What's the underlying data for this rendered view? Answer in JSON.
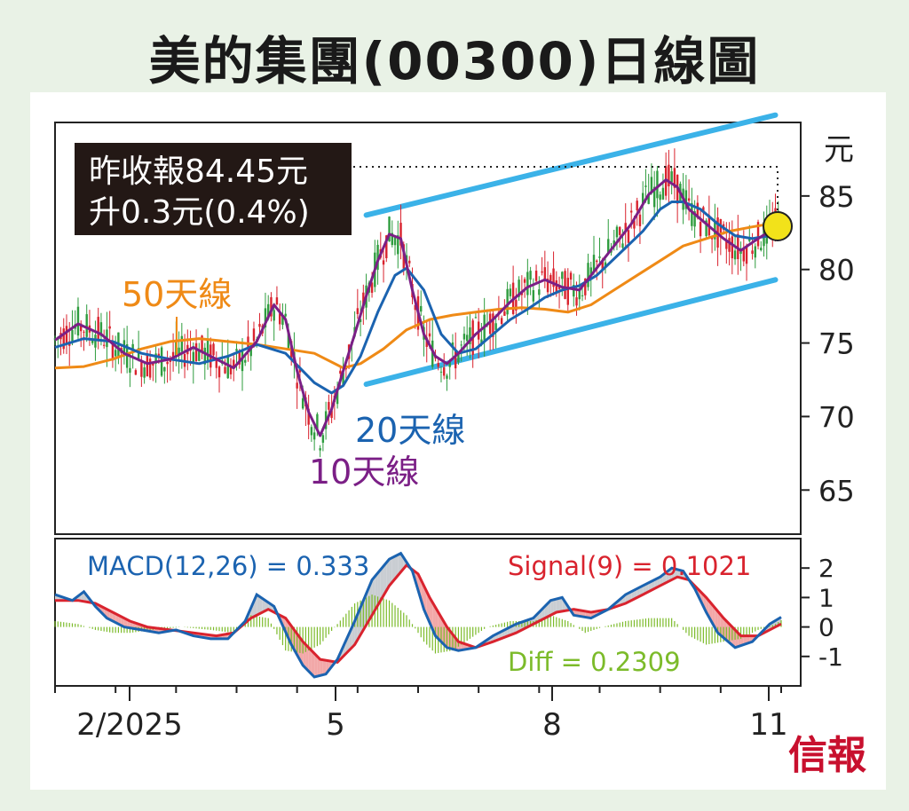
{
  "title": "美的集團(00300)日線圖",
  "info_box": {
    "line1": "昨收報84.45元",
    "line2": "升0.3元(0.4%)"
  },
  "brand": "信報",
  "colors": {
    "bar_up": "#2e9c3e",
    "bar_down": "#d9232e",
    "ma10": "#7b1f86",
    "ma20": "#1b63b0",
    "ma50": "#ef8a16",
    "channel": "#3bb2e8",
    "macd": "#1b63b0",
    "signal": "#d9232e",
    "diff": "#7cbb2a",
    "highlight": "#f2e21a",
    "brand": "#c8102e"
  },
  "chart_data": [
    {
      "type": "candlestick",
      "name": "price",
      "y_unit": "元",
      "ylim": [
        62,
        90
      ],
      "y_ticks": [
        65,
        70,
        75,
        80,
        85
      ],
      "x_tick_labels": [
        "2/2025",
        "5",
        "8",
        "11"
      ],
      "last_close": 84.45,
      "change": 0.3,
      "change_pct": 0.4,
      "lines": [
        {
          "name": "10天線",
          "color_key": "ma10",
          "points": [
            [
              0,
              75.2
            ],
            [
              8,
              76.3
            ],
            [
              16,
              75.6
            ],
            [
              24,
              74.3
            ],
            [
              32,
              73.6
            ],
            [
              40,
              73.9
            ],
            [
              48,
              74.7
            ],
            [
              56,
              73.9
            ],
            [
              62,
              73.3
            ],
            [
              70,
              75.1
            ],
            [
              76,
              77.6
            ],
            [
              80,
              76.6
            ],
            [
              84,
              73.1
            ],
            [
              88,
              70.3
            ],
            [
              92,
              68.7
            ],
            [
              96,
              70.5
            ],
            [
              100,
              73.1
            ],
            [
              104,
              75.6
            ],
            [
              108,
              78.2
            ],
            [
              112,
              80.6
            ],
            [
              116,
              82.4
            ],
            [
              120,
              82.1
            ],
            [
              124,
              78.6
            ],
            [
              128,
              75.6
            ],
            [
              132,
              74.1
            ],
            [
              136,
              73.6
            ],
            [
              140,
              74.3
            ],
            [
              146,
              75.6
            ],
            [
              152,
              76.6
            ],
            [
              158,
              77.8
            ],
            [
              164,
              78.8
            ],
            [
              170,
              79.3
            ],
            [
              176,
              78.8
            ],
            [
              182,
              78.6
            ],
            [
              188,
              80.1
            ],
            [
              194,
              81.6
            ],
            [
              200,
              83.1
            ],
            [
              206,
              85.1
            ],
            [
              212,
              86.1
            ],
            [
              216,
              85.6
            ],
            [
              220,
              84.1
            ],
            [
              226,
              83.1
            ],
            [
              232,
              82.1
            ],
            [
              238,
              81.3
            ],
            [
              244,
              82.1
            ],
            [
              248,
              82.6
            ],
            [
              252,
              83.6
            ]
          ]
        },
        {
          "name": "20天線",
          "color_key": "ma20",
          "points": [
            [
              0,
              74.7
            ],
            [
              10,
              75.3
            ],
            [
              20,
              75.1
            ],
            [
              30,
              74.3
            ],
            [
              40,
              73.9
            ],
            [
              50,
              73.6
            ],
            [
              60,
              74.1
            ],
            [
              70,
              74.9
            ],
            [
              80,
              74.3
            ],
            [
              90,
              72.3
            ],
            [
              96,
              71.6
            ],
            [
              100,
              72.1
            ],
            [
              106,
              74.1
            ],
            [
              112,
              77.1
            ],
            [
              118,
              79.6
            ],
            [
              122,
              80.1
            ],
            [
              128,
              78.6
            ],
            [
              134,
              75.6
            ],
            [
              140,
              74.3
            ],
            [
              146,
              74.6
            ],
            [
              152,
              75.6
            ],
            [
              158,
              76.6
            ],
            [
              164,
              77.3
            ],
            [
              170,
              78.1
            ],
            [
              176,
              78.6
            ],
            [
              182,
              78.9
            ],
            [
              188,
              79.6
            ],
            [
              196,
              81.1
            ],
            [
              204,
              82.6
            ],
            [
              210,
              84.1
            ],
            [
              214,
              84.6
            ],
            [
              218,
              84.6
            ],
            [
              224,
              84.1
            ],
            [
              230,
              83.1
            ],
            [
              236,
              82.3
            ],
            [
              242,
              82.1
            ],
            [
              248,
              82.3
            ],
            [
              252,
              82.6
            ]
          ]
        },
        {
          "name": "50天線",
          "color_key": "ma50",
          "points": [
            [
              0,
              73.3
            ],
            [
              10,
              73.4
            ],
            [
              20,
              73.9
            ],
            [
              30,
              74.6
            ],
            [
              40,
              75.1
            ],
            [
              50,
              75.3
            ],
            [
              60,
              75.1
            ],
            [
              70,
              74.9
            ],
            [
              80,
              74.6
            ],
            [
              90,
              74.3
            ],
            [
              100,
              73.3
            ],
            [
              106,
              73.6
            ],
            [
              114,
              74.6
            ],
            [
              122,
              75.9
            ],
            [
              130,
              76.6
            ],
            [
              138,
              76.9
            ],
            [
              146,
              77.1
            ],
            [
              154,
              77.3
            ],
            [
              162,
              77.4
            ],
            [
              170,
              77.3
            ],
            [
              178,
              77.1
            ],
            [
              186,
              77.6
            ],
            [
              194,
              78.6
            ],
            [
              202,
              79.6
            ],
            [
              210,
              80.6
            ],
            [
              218,
              81.6
            ],
            [
              226,
              82.1
            ],
            [
              234,
              82.6
            ],
            [
              242,
              82.9
            ],
            [
              248,
              83.1
            ],
            [
              252,
              83.3
            ]
          ]
        },
        {
          "name": "upper_channel",
          "color_key": "channel",
          "points": [
            [
              108,
              83.7
            ],
            [
              250,
              90.5
            ]
          ]
        },
        {
          "name": "lower_channel",
          "color_key": "channel",
          "points": [
            [
              108,
              72.2
            ],
            [
              250,
              79.3
            ]
          ]
        }
      ]
    },
    {
      "type": "line",
      "name": "MACD",
      "ylim": [
        -2,
        3
      ],
      "y_ticks": [
        2,
        1,
        0,
        -1
      ],
      "series": [
        {
          "name": "MACD(12,26) = 0.333",
          "color_key": "macd",
          "points": [
            [
              0,
              1.1
            ],
            [
              6,
              0.9
            ],
            [
              10,
              1.2
            ],
            [
              14,
              0.7
            ],
            [
              18,
              0.3
            ],
            [
              24,
              0
            ],
            [
              30,
              -0.1
            ],
            [
              36,
              -0.2
            ],
            [
              42,
              -0.1
            ],
            [
              48,
              -0.3
            ],
            [
              54,
              -0.4
            ],
            [
              60,
              -0.4
            ],
            [
              66,
              0.2
            ],
            [
              70,
              1.1
            ],
            [
              76,
              0.7
            ],
            [
              82,
              -0.6
            ],
            [
              86,
              -1.3
            ],
            [
              90,
              -1.7
            ],
            [
              94,
              -1.6
            ],
            [
              98,
              -1.1
            ],
            [
              104,
              0.2
            ],
            [
              110,
              1.6
            ],
            [
              116,
              2.3
            ],
            [
              120,
              2.5
            ],
            [
              124,
              1.9
            ],
            [
              128,
              0.6
            ],
            [
              132,
              -0.3
            ],
            [
              136,
              -0.7
            ],
            [
              140,
              -0.8
            ],
            [
              146,
              -0.7
            ],
            [
              152,
              -0.3
            ],
            [
              160,
              0.1
            ],
            [
              166,
              0.3
            ],
            [
              172,
              0.9
            ],
            [
              176,
              1.0
            ],
            [
              180,
              0.4
            ],
            [
              186,
              0.3
            ],
            [
              192,
              0.6
            ],
            [
              198,
              1.1
            ],
            [
              204,
              1.4
            ],
            [
              210,
              1.7
            ],
            [
              214,
              2.0
            ],
            [
              218,
              1.9
            ],
            [
              222,
              1.3
            ],
            [
              226,
              0.5
            ],
            [
              230,
              -0.2
            ],
            [
              236,
              -0.7
            ],
            [
              242,
              -0.5
            ],
            [
              248,
              0.1
            ],
            [
              252,
              0.333
            ]
          ]
        },
        {
          "name": "Signal(9) = 0.1021",
          "color_key": "signal",
          "points": [
            [
              0,
              0.9
            ],
            [
              8,
              0.9
            ],
            [
              14,
              0.8
            ],
            [
              20,
              0.5
            ],
            [
              26,
              0.2
            ],
            [
              32,
              0
            ],
            [
              40,
              -0.1
            ],
            [
              48,
              -0.2
            ],
            [
              56,
              -0.3
            ],
            [
              62,
              -0.2
            ],
            [
              68,
              0.3
            ],
            [
              74,
              0.6
            ],
            [
              80,
              0.3
            ],
            [
              86,
              -0.5
            ],
            [
              92,
              -1.1
            ],
            [
              98,
              -1.2
            ],
            [
              104,
              -0.6
            ],
            [
              110,
              0.4
            ],
            [
              116,
              1.4
            ],
            [
              122,
              2.1
            ],
            [
              126,
              1.8
            ],
            [
              130,
              1.0
            ],
            [
              136,
              0
            ],
            [
              140,
              -0.5
            ],
            [
              146,
              -0.7
            ],
            [
              152,
              -0.5
            ],
            [
              160,
              -0.2
            ],
            [
              168,
              0.2
            ],
            [
              174,
              0.5
            ],
            [
              180,
              0.6
            ],
            [
              186,
              0.5
            ],
            [
              192,
              0.6
            ],
            [
              198,
              0.8
            ],
            [
              204,
              1.1
            ],
            [
              210,
              1.4
            ],
            [
              216,
              1.7
            ],
            [
              220,
              1.6
            ],
            [
              226,
              1.0
            ],
            [
              232,
              0.3
            ],
            [
              238,
              -0.3
            ],
            [
              244,
              -0.3
            ],
            [
              250,
              0
            ],
            [
              252,
              0.1021
            ]
          ]
        },
        {
          "name": "Diff = 0.2309",
          "color_key": "diff",
          "points": [
            [
              0,
              0.2
            ],
            [
              8,
              0.1
            ],
            [
              14,
              -0.1
            ],
            [
              20,
              -0.2
            ],
            [
              26,
              -0.2
            ],
            [
              34,
              -0.1
            ],
            [
              44,
              0
            ],
            [
              54,
              -0.1
            ],
            [
              62,
              -0.2
            ],
            [
              68,
              0.4
            ],
            [
              74,
              0.3
            ],
            [
              80,
              -0.8
            ],
            [
              86,
              -0.9
            ],
            [
              92,
              -0.6
            ],
            [
              98,
              0.1
            ],
            [
              104,
              0.8
            ],
            [
              110,
              1.1
            ],
            [
              116,
              0.9
            ],
            [
              122,
              0.4
            ],
            [
              128,
              -0.5
            ],
            [
              132,
              -0.9
            ],
            [
              138,
              -0.8
            ],
            [
              144,
              -0.4
            ],
            [
              150,
              0
            ],
            [
              158,
              0.2
            ],
            [
              166,
              0.2
            ],
            [
              172,
              0.4
            ],
            [
              178,
              0.2
            ],
            [
              184,
              -0.2
            ],
            [
              190,
              0
            ],
            [
              198,
              0.2
            ],
            [
              206,
              0.3
            ],
            [
              214,
              0.3
            ],
            [
              220,
              -0.3
            ],
            [
              226,
              -0.6
            ],
            [
              232,
              -0.5
            ],
            [
              238,
              -0.4
            ],
            [
              244,
              -0.1
            ],
            [
              250,
              0.1
            ],
            [
              252,
              0.2309
            ]
          ]
        }
      ]
    }
  ]
}
